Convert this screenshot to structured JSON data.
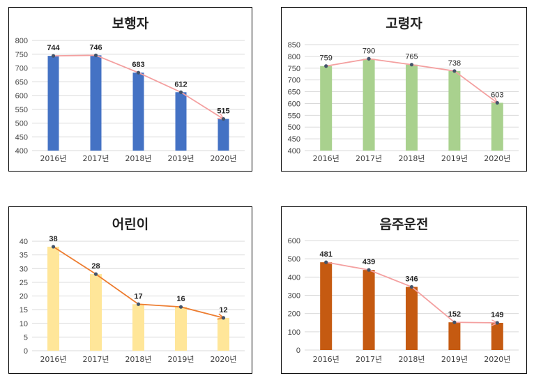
{
  "chart_data": [
    {
      "type": "bar",
      "title": "보행자",
      "categories": [
        "2016년",
        "2017년",
        "2018년",
        "2019년",
        "2020년"
      ],
      "values": [
        744,
        746,
        683,
        612,
        515
      ],
      "ylim": [
        400,
        800
      ],
      "yticks": [
        "400",
        "450",
        "500",
        "550",
        "600",
        "650",
        "700",
        "750",
        "800"
      ],
      "bar_color": "#4472C4",
      "line_color": "#F4A0A0",
      "trend_line": true,
      "grid": true
    },
    {
      "type": "bar",
      "title": "고령자",
      "categories": [
        "2016년",
        "2017년",
        "2018년",
        "2019년",
        "2020년"
      ],
      "values": [
        759,
        790,
        765,
        738,
        603
      ],
      "ylim": [
        400,
        850
      ],
      "yticks": [
        "400",
        "450",
        "500",
        "550",
        "600",
        "650",
        "700",
        "750",
        "800",
        "850"
      ],
      "bar_color": "#A9D18E",
      "line_color": "#F4A0A0",
      "trend_line": true,
      "grid": true
    },
    {
      "type": "bar",
      "title": "어린이",
      "categories": [
        "2016년",
        "2017년",
        "2018년",
        "2019년",
        "2020년"
      ],
      "values": [
        38,
        28,
        17,
        16,
        12
      ],
      "ylim": [
        0,
        40
      ],
      "yticks": [
        "0",
        "5",
        "10",
        "15",
        "20",
        "25",
        "30",
        "35",
        "40"
      ],
      "bar_color": "#FFE699",
      "line_color": "#ED7D31",
      "trend_line": true,
      "grid": true
    },
    {
      "type": "bar",
      "title": "음주운전",
      "categories": [
        "2016년",
        "2017년",
        "2018년",
        "2019년",
        "2020년"
      ],
      "values": [
        481,
        439,
        346,
        152,
        149
      ],
      "ylim": [
        0,
        600
      ],
      "yticks": [
        "0",
        "100",
        "200",
        "300",
        "400",
        "500",
        "600"
      ],
      "bar_color": "#C55A11",
      "line_color": "#F4A0A0",
      "trend_line": true,
      "grid": true
    }
  ]
}
